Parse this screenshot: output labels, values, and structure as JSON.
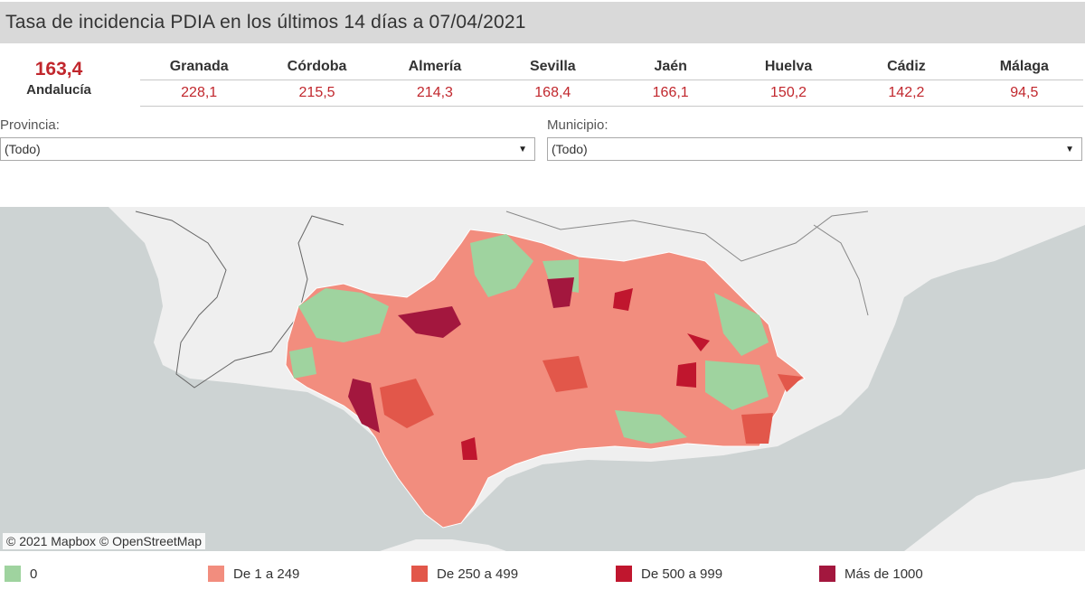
{
  "header": {
    "title": "Tasa de incidencia PDIA en los últimos 14 días a 07/04/2021"
  },
  "total": {
    "value": "163,4",
    "label": "Andalucía"
  },
  "provinces": [
    {
      "name": "Granada",
      "value": "228,1"
    },
    {
      "name": "Córdoba",
      "value": "215,5"
    },
    {
      "name": "Almería",
      "value": "214,3"
    },
    {
      "name": "Sevilla",
      "value": "168,4"
    },
    {
      "name": "Jaén",
      "value": "166,1"
    },
    {
      "name": "Huelva",
      "value": "150,2"
    },
    {
      "name": "Cádiz",
      "value": "142,2"
    },
    {
      "name": "Málaga",
      "value": "94,5"
    }
  ],
  "filters": {
    "provincia": {
      "label": "Provincia:",
      "value": "(Todo)"
    },
    "municipio": {
      "label": "Municipio:",
      "value": "(Todo)"
    }
  },
  "map": {
    "attribution": "© 2021 Mapbox  © OpenStreetMap"
  },
  "legend": [
    {
      "label": "0",
      "color": "#9fd39f"
    },
    {
      "label": "De 1 a 249",
      "color": "#f28d7e"
    },
    {
      "label": "De 250 a 499",
      "color": "#e2574a"
    },
    {
      "label": "De 500 a 999",
      "color": "#c0162e"
    },
    {
      "label": "Más de 1000",
      "color": "#a3173e"
    }
  ],
  "colors": {
    "accent_red": "#c1272d",
    "sea": "#cdd3d3",
    "land": "#efefef"
  }
}
